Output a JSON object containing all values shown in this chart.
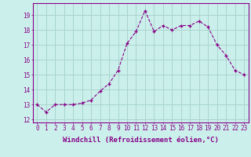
{
  "x": [
    0,
    1,
    2,
    3,
    4,
    5,
    6,
    7,
    8,
    9,
    10,
    11,
    12,
    13,
    14,
    15,
    16,
    17,
    18,
    19,
    20,
    21,
    22,
    23
  ],
  "y": [
    13.0,
    12.5,
    13.0,
    13.0,
    13.0,
    13.1,
    13.3,
    13.9,
    14.4,
    15.3,
    17.1,
    17.9,
    19.3,
    17.9,
    18.3,
    18.0,
    18.3,
    18.3,
    18.6,
    18.2,
    17.0,
    16.3,
    15.3,
    15.0
  ],
  "line_color": "#880088",
  "marker": "+",
  "bg_color": "#cbf0eb",
  "grid_color": "#aad4ce",
  "xlabel": "Windchill (Refroidissement éolien,°C)",
  "xlabel_fontsize": 6.5,
  "tick_fontsize": 5.5,
  "xlim_min": -0.5,
  "xlim_max": 23.5,
  "ylim_min": 11.8,
  "ylim_max": 19.8,
  "yticks": [
    12,
    13,
    14,
    15,
    16,
    17,
    18,
    19
  ],
  "xtick_labels": [
    "0",
    "1",
    "2",
    "3",
    "4",
    "5",
    "6",
    "7",
    "8",
    "9",
    "10",
    "11",
    "12",
    "13",
    "14",
    "15",
    "16",
    "17",
    "18",
    "19",
    "20",
    "21",
    "22",
    "23"
  ]
}
